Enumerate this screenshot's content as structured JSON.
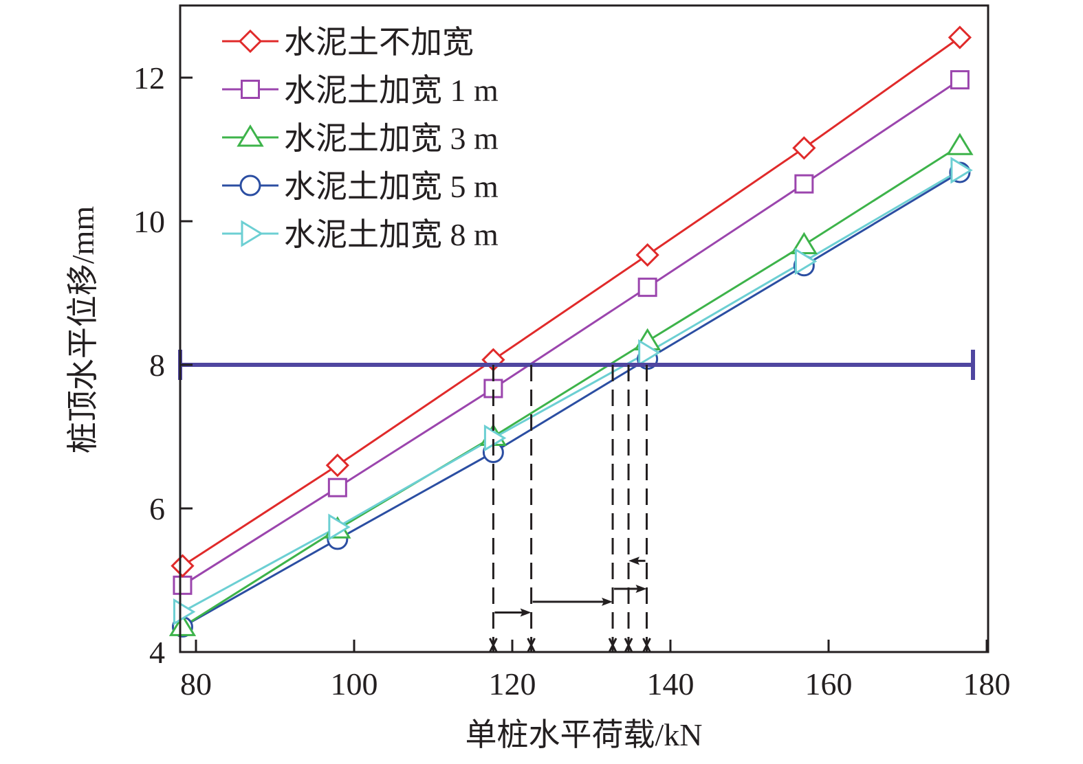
{
  "chart_data": {
    "type": "line",
    "title": "",
    "xlabel": "单桩水平荷载/kN",
    "ylabel": "桩顶水平位移/mm",
    "xlim": [
      78,
      181
    ],
    "ylim": [
      4,
      13
    ],
    "xticks": [
      80,
      100,
      120,
      140,
      160,
      180
    ],
    "xtick_labels": [
      "80",
      "100",
      "120",
      "140",
      "160",
      "180"
    ],
    "yticks": [
      4,
      6,
      8,
      10,
      12
    ],
    "ytick_labels": [
      "4",
      "6",
      "8",
      "10",
      "12"
    ],
    "grid": false,
    "legend_position": "top-left",
    "x": [
      78.3,
      97.9,
      117.6,
      137.1,
      156.9,
      176.6
    ],
    "series": [
      {
        "name": "水泥土不加宽",
        "color": "#e02a2a",
        "marker": "diamond",
        "values": [
          5.2,
          6.6,
          8.07,
          9.53,
          11.02,
          12.56
        ]
      },
      {
        "name": "水泥土加宽 1 m",
        "color": "#9b45ad",
        "marker": "square",
        "values": [
          4.93,
          6.29,
          7.67,
          9.08,
          10.52,
          11.97
        ]
      },
      {
        "name": "水泥土加宽 3 m",
        "color": "#3db34a",
        "marker": "triangle-up",
        "values": [
          4.35,
          5.71,
          7.0,
          8.33,
          9.67,
          11.05
        ]
      },
      {
        "name": "水泥土加宽 5 m",
        "color": "#2b4ea2",
        "marker": "circle",
        "values": [
          4.35,
          5.57,
          6.78,
          8.08,
          9.38,
          10.68
        ]
      },
      {
        "name": "水泥土加宽 8 m",
        "color": "#6ccfd3",
        "marker": "triangle-right",
        "values": [
          4.56,
          5.74,
          6.98,
          8.17,
          9.44,
          10.71
        ]
      }
    ],
    "reference_line": {
      "y": 8,
      "color": "#4f46a0"
    },
    "crossing_loads": [
      117.6,
      122.4,
      132.7,
      134.7,
      137.0
    ],
    "arrows": [
      {
        "from": 117.6,
        "to": 122.4,
        "y": 4.55
      },
      {
        "from": 122.4,
        "to": 132.7,
        "y": 4.7
      },
      {
        "from": 132.7,
        "to": 137.0,
        "y": 4.88
      },
      {
        "from": 137.0,
        "to": 134.7,
        "y": 5.27
      }
    ]
  }
}
